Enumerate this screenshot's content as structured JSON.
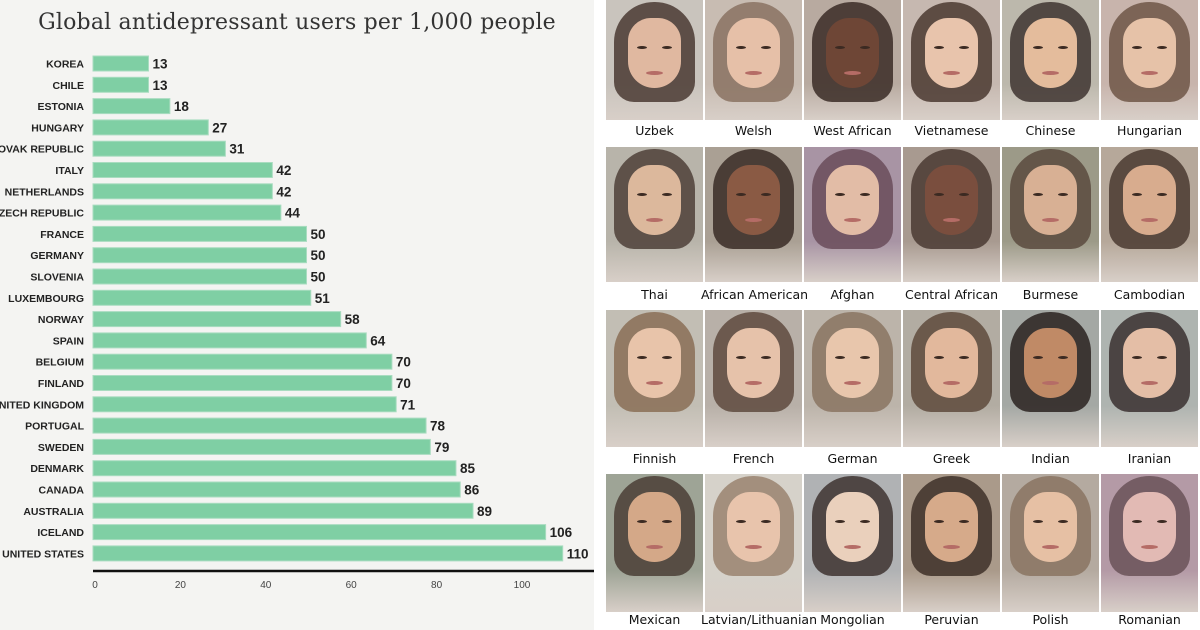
{
  "chart_data": {
    "type": "bar",
    "orientation": "horizontal",
    "title": "Global antidepressant users per 1,000 people",
    "xlabel": "",
    "ylabel": "",
    "xlim": [
      0,
      110
    ],
    "x_ticks": [
      0,
      20,
      40,
      60,
      80,
      100
    ],
    "grid": false,
    "bar_color": "#7fcfa4",
    "categories": [
      "KOREA",
      "CHILE",
      "ESTONIA",
      "HUNGARY",
      "SLOVAK REPUBLIC",
      "ITALY",
      "NETHERLANDS",
      "CZECH REPUBLIC",
      "FRANCE",
      "GERMANY",
      "SLOVENIA",
      "LUXEMBOURG",
      "NORWAY",
      "SPAIN",
      "BELGIUM",
      "FINLAND",
      "UNITED KINGDOM",
      "PORTUGAL",
      "SWEDEN",
      "DENMARK",
      "CANADA",
      "AUSTRALIA",
      "ICELAND",
      "UNITED STATES"
    ],
    "values": [
      13,
      13,
      18,
      27,
      31,
      42,
      42,
      44,
      50,
      50,
      50,
      51,
      58,
      64,
      70,
      70,
      71,
      78,
      79,
      85,
      86,
      89,
      106,
      110
    ]
  },
  "faces": {
    "rows": [
      [
        {
          "label": "Uzbek",
          "skin": "#e0b8a0",
          "hair": "#4a3a32",
          "bg": "#c9c4bd"
        },
        {
          "label": "Welsh",
          "skin": "#e6c0a8",
          "hair": "#8a7262",
          "bg": "#c8bcb2"
        },
        {
          "label": "West African",
          "skin": "#6e4636",
          "hair": "#3a2c26",
          "bg": "#b8aaa0"
        },
        {
          "label": "Vietnamese",
          "skin": "#e8c4ac",
          "hair": "#4a3830",
          "bg": "#c6b8b0"
        },
        {
          "label": "Chinese",
          "skin": "#e4bc9c",
          "hair": "#3e3430",
          "bg": "#bcb8ac"
        },
        {
          "label": "Hungarian",
          "skin": "#e6c2a8",
          "hair": "#6e5646",
          "bg": "#c8b4ac"
        }
      ],
      [
        {
          "label": "Thai",
          "skin": "#dcb89c",
          "hair": "#4e4038",
          "bg": "#b8b4aa"
        },
        {
          "label": "African American",
          "skin": "#8a5a44",
          "hair": "#3a2c26",
          "bg": "#aaa094"
        },
        {
          "label": "Afghan",
          "skin": "#e2bca6",
          "hair": "#6a4c5a",
          "bg": "#a894a4"
        },
        {
          "label": "Central African",
          "skin": "#7a4e3e",
          "hair": "#4a3a32",
          "bg": "#a89a90"
        },
        {
          "label": "Burmese",
          "skin": "#d8b094",
          "hair": "#5a4a3e",
          "bg": "#9c9a88"
        },
        {
          "label": "Cambodian",
          "skin": "#d8ac8e",
          "hair": "#4a3a30",
          "bg": "#b6a89a"
        }
      ],
      [
        {
          "label": "Finnish",
          "skin": "#e8c4aa",
          "hair": "#8a6e56",
          "bg": "#c2beb4"
        },
        {
          "label": "French",
          "skin": "#e6c2aa",
          "hair": "#5e4a3e",
          "bg": "#b8b0a8"
        },
        {
          "label": "German",
          "skin": "#e8c6ac",
          "hair": "#8a7462",
          "bg": "#bcb4aa"
        },
        {
          "label": "Greek",
          "skin": "#e2b89c",
          "hair": "#5e4a3c",
          "bg": "#b2aca2"
        },
        {
          "label": "Indian",
          "skin": "#c08a66",
          "hair": "#2a2220",
          "bg": "#a4a8a4"
        },
        {
          "label": "Iranian",
          "skin": "#e4bea6",
          "hair": "#3a3030",
          "bg": "#aeb4b0"
        }
      ],
      [
        {
          "label": "Mexican",
          "skin": "#d4a888",
          "hair": "#4a3e36",
          "bg": "#9ea496"
        },
        {
          "label": "Latvian/Lithuanian",
          "skin": "#e8c4ac",
          "hair": "#9a8470",
          "bg": "#d6d2ca"
        },
        {
          "label": "Mongolian",
          "skin": "#ead0bc",
          "hair": "#3e3230",
          "bg": "#b0b2b4"
        },
        {
          "label": "Peruvian",
          "skin": "#d6aa8a",
          "hair": "#3e3028",
          "bg": "#aa9a8a"
        },
        {
          "label": "Polish",
          "skin": "#e6c0a4",
          "hair": "#8a7462",
          "bg": "#b4aaa0"
        },
        {
          "label": "Romanian",
          "skin": "#e2bab4",
          "hair": "#6a5258",
          "bg": "#b49aa6"
        }
      ]
    ]
  }
}
